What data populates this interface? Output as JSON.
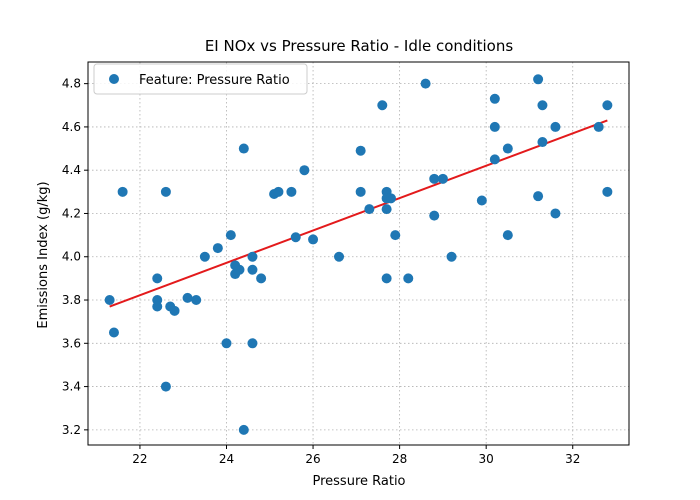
{
  "chart_data": {
    "type": "scatter",
    "title": "EI NOx vs Pressure Ratio - Idle conditions",
    "xlabel": "Pressure Ratio",
    "ylabel": "Emissions Index (g/kg)",
    "xlim": [
      20.8,
      33.3
    ],
    "ylim": [
      3.13,
      4.9
    ],
    "xticks": [
      22,
      24,
      26,
      28,
      30,
      32
    ],
    "yticks": [
      3.2,
      3.4,
      3.6,
      3.8,
      4.0,
      4.2,
      4.4,
      4.6,
      4.8
    ],
    "grid": true,
    "legend_position": "top-left",
    "series": [
      {
        "name": "Feature: Pressure Ratio",
        "color": "#1f77b4",
        "points": [
          [
            21.3,
            3.8
          ],
          [
            21.4,
            3.65
          ],
          [
            21.6,
            4.3
          ],
          [
            22.4,
            3.9
          ],
          [
            22.4,
            3.8
          ],
          [
            22.4,
            3.77
          ],
          [
            22.6,
            4.3
          ],
          [
            22.6,
            3.4
          ],
          [
            22.7,
            3.77
          ],
          [
            22.8,
            3.75
          ],
          [
            23.1,
            3.81
          ],
          [
            23.3,
            3.8
          ],
          [
            23.5,
            4.0
          ],
          [
            23.8,
            4.04
          ],
          [
            24.0,
            3.6
          ],
          [
            24.1,
            4.1
          ],
          [
            24.2,
            3.96
          ],
          [
            24.2,
            3.92
          ],
          [
            24.3,
            3.94
          ],
          [
            24.4,
            4.5
          ],
          [
            24.4,
            3.2
          ],
          [
            24.6,
            4.0
          ],
          [
            24.6,
            3.94
          ],
          [
            24.6,
            3.6
          ],
          [
            24.8,
            3.9
          ],
          [
            25.1,
            4.29
          ],
          [
            25.2,
            4.3
          ],
          [
            25.5,
            4.3
          ],
          [
            25.6,
            4.09
          ],
          [
            25.8,
            4.4
          ],
          [
            26.0,
            4.08
          ],
          [
            26.6,
            4.0
          ],
          [
            27.1,
            4.49
          ],
          [
            27.1,
            4.3
          ],
          [
            27.3,
            4.22
          ],
          [
            27.6,
            4.7
          ],
          [
            27.7,
            4.3
          ],
          [
            27.7,
            4.27
          ],
          [
            27.7,
            4.22
          ],
          [
            27.7,
            3.9
          ],
          [
            27.8,
            4.27
          ],
          [
            27.9,
            4.1
          ],
          [
            28.2,
            3.9
          ],
          [
            28.6,
            4.8
          ],
          [
            28.8,
            4.36
          ],
          [
            28.8,
            4.19
          ],
          [
            29.0,
            4.36
          ],
          [
            29.2,
            4.0
          ],
          [
            29.9,
            4.26
          ],
          [
            30.2,
            4.73
          ],
          [
            30.2,
            4.6
          ],
          [
            30.2,
            4.45
          ],
          [
            30.5,
            4.5
          ],
          [
            30.5,
            4.1
          ],
          [
            31.2,
            4.82
          ],
          [
            31.2,
            4.28
          ],
          [
            31.3,
            4.7
          ],
          [
            31.3,
            4.53
          ],
          [
            31.6,
            4.6
          ],
          [
            31.6,
            4.2
          ],
          [
            32.6,
            4.6
          ],
          [
            32.8,
            4.7
          ],
          [
            32.8,
            4.3
          ]
        ]
      }
    ],
    "trendline": {
      "color": "#e31a1c",
      "from": [
        21.3,
        3.77
      ],
      "to": [
        32.8,
        4.63
      ]
    }
  }
}
